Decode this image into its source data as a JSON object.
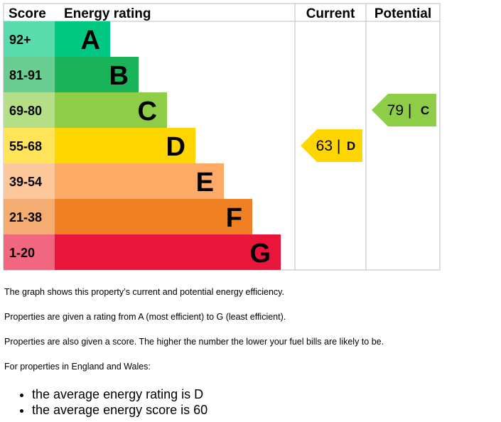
{
  "chart_data": {
    "type": "table",
    "headers": {
      "score": "Score",
      "rating": "Energy rating",
      "current": "Current",
      "potential": "Potential"
    },
    "bands": [
      {
        "score": "92+",
        "letter": "A",
        "color": "#00c781"
      },
      {
        "score": "81-91",
        "letter": "B",
        "color": "#19b459"
      },
      {
        "score": "69-80",
        "letter": "C",
        "color": "#8dce46"
      },
      {
        "score": "55-68",
        "letter": "D",
        "color": "#ffd500"
      },
      {
        "score": "39-54",
        "letter": "E",
        "color": "#fcaa65"
      },
      {
        "score": "21-38",
        "letter": "F",
        "color": "#ef8023"
      },
      {
        "score": "1-20",
        "letter": "G",
        "color": "#e9153b"
      }
    ],
    "current": {
      "score": 63,
      "letter": "D",
      "label": "63 |",
      "color": "#ffd500"
    },
    "potential": {
      "score": 79,
      "letter": "C",
      "label": "79 |",
      "color": "#8dce46"
    }
  },
  "text": {
    "p1": "The graph shows this property’s current and potential energy efficiency.",
    "p2": "Properties are given a rating from A (most efficient) to G (least efficient).",
    "p3": "Properties are also given a score. The higher the number the lower your fuel bills are likely to be.",
    "p4": "For properties in England and Wales:",
    "avg_rating": "the average energy rating is D",
    "avg_score": "the average energy score is 60"
  }
}
